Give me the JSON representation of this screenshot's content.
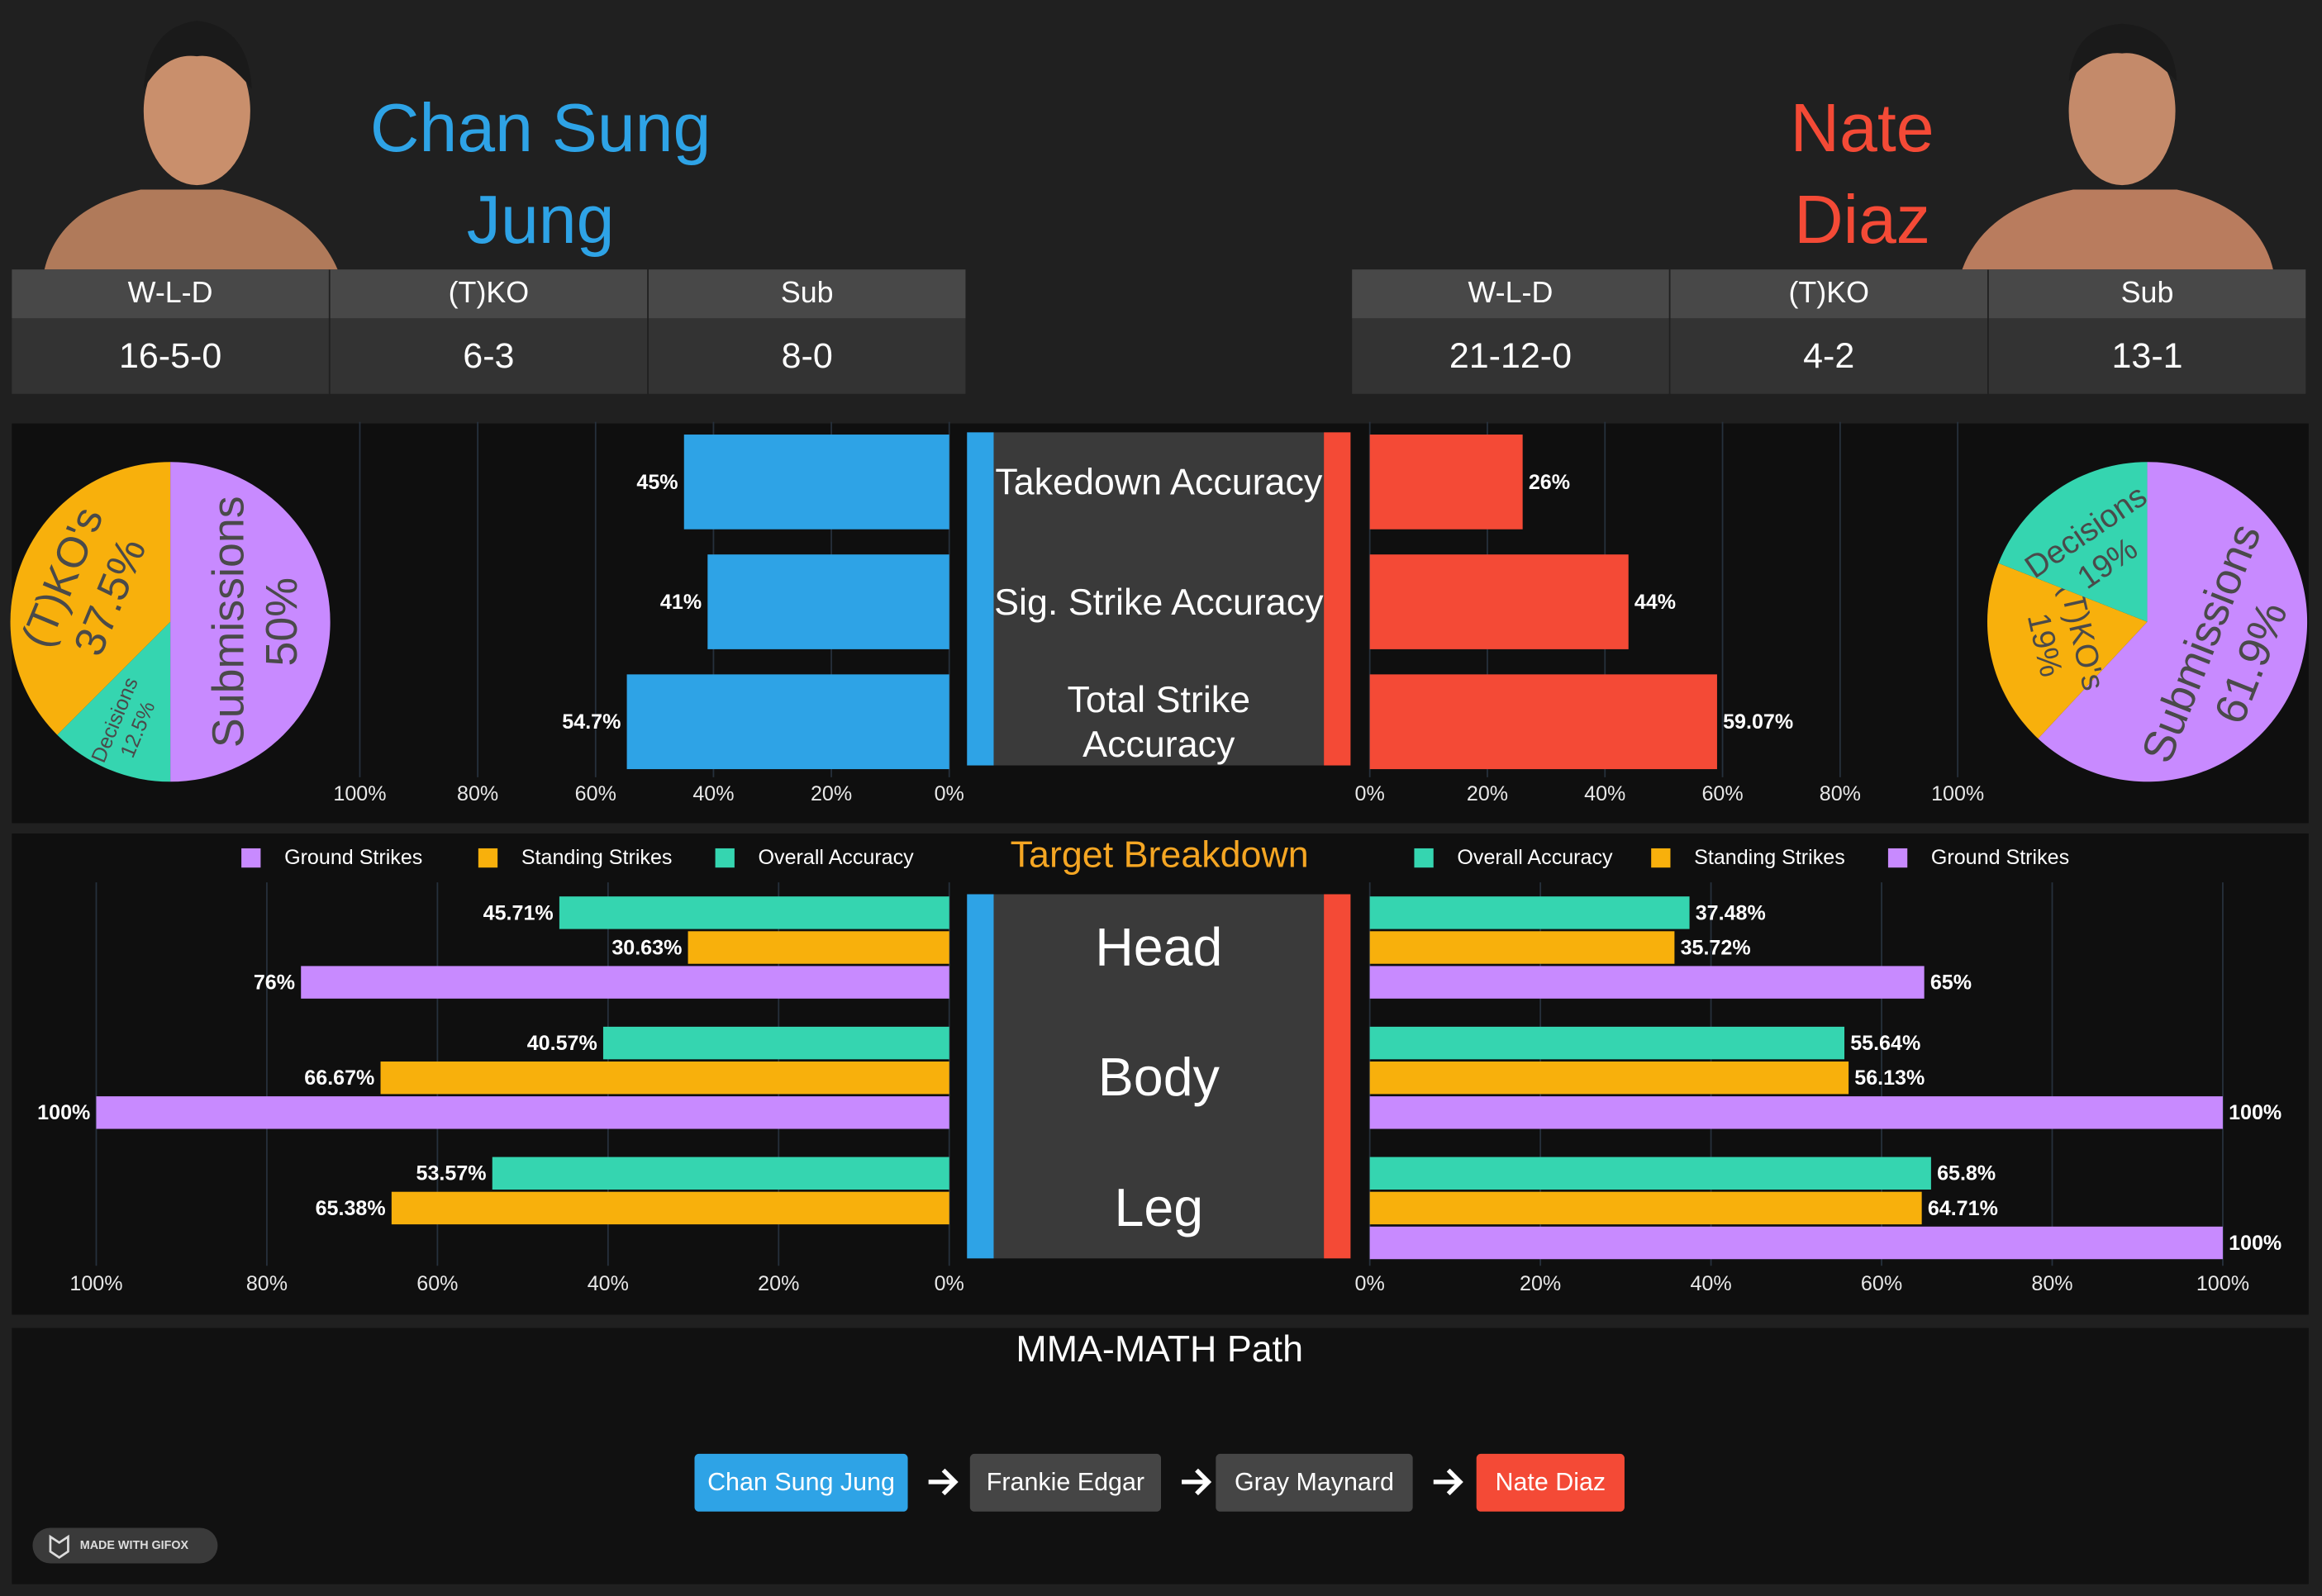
{
  "fighters": [
    {
      "name": "Chan Sung Jung",
      "color": "#2ea3e6",
      "stats": [
        {
          "label": "W-L-D",
          "value": "16-5-0"
        },
        {
          "label": "(T)KO",
          "value": "6-3"
        },
        {
          "label": "Sub",
          "value": "8-0"
        }
      ]
    },
    {
      "name": "Nate Diaz",
      "color": "#f44a36",
      "stats": [
        {
          "label": "W-L-D",
          "value": "21-12-0"
        },
        {
          "label": "(T)KO",
          "value": "4-2"
        },
        {
          "label": "Sub",
          "value": "13-1"
        }
      ]
    }
  ],
  "chart_data": [
    {
      "type": "pie",
      "labels": [
        "Submissions",
        "Decisions",
        "(T)KO's"
      ],
      "values": [
        50,
        12.5,
        37.5
      ],
      "value_labels": [
        "50%",
        "12.5%",
        "37.5%"
      ],
      "colors": [
        "#c88aff",
        "#35d5b0",
        "#f8b00c"
      ]
    },
    {
      "type": "pie",
      "labels": [
        "Submissions",
        "(T)KO's",
        "Decisions"
      ],
      "values": [
        61.9,
        19,
        19
      ],
      "value_labels": [
        "61.9%",
        "19%",
        "19%"
      ],
      "colors": [
        "#c88aff",
        "#f8b00c",
        "#35d5b0"
      ]
    },
    {
      "type": "butterfly",
      "categories": [
        "Takedown Accuracy",
        "Sig. Strike Accuracy",
        "Total Strike Accuracy"
      ],
      "xlim": [
        0,
        100
      ],
      "xticks": [
        {
          "value": 0,
          "label": "0%"
        },
        {
          "value": 20,
          "label": "20%"
        },
        {
          "value": 40,
          "label": "40%"
        },
        {
          "value": 60,
          "label": "60%"
        },
        {
          "value": 80,
          "label": "80%"
        },
        {
          "value": 100,
          "label": "100%"
        }
      ],
      "sides": [
        {
          "series": [
            {
              "color": "#2ea3e6",
              "values": [
                45,
                41,
                54.7
              ],
              "value_labels": [
                "45%",
                "41%",
                "54.7%"
              ]
            }
          ]
        },
        {
          "series": [
            {
              "color": "#f44a36",
              "values": [
                26,
                44,
                59.07
              ],
              "value_labels": [
                "26%",
                "44%",
                "59.07%"
              ]
            }
          ]
        }
      ]
    },
    {
      "type": "butterfly",
      "title": "Target Breakdown",
      "categories": [
        "Head",
        "Body",
        "Leg"
      ],
      "xlim": [
        0,
        100
      ],
      "xticks": [
        {
          "value": 0,
          "label": "0%"
        },
        {
          "value": 20,
          "label": "20%"
        },
        {
          "value": 40,
          "label": "40%"
        },
        {
          "value": 60,
          "label": "60%"
        },
        {
          "value": 80,
          "label": "80%"
        },
        {
          "value": 100,
          "label": "100%"
        }
      ],
      "sides": [
        {
          "series": [
            {
              "name": "Ground Strikes",
              "color": "#c88aff",
              "values": [
                76,
                100,
                null
              ],
              "value_labels": [
                "76%",
                "100%",
                null
              ]
            },
            {
              "name": "Standing Strikes",
              "color": "#f8b00c",
              "values": [
                30.63,
                66.67,
                65.38
              ],
              "value_labels": [
                "30.63%",
                "66.67%",
                "65.38%"
              ]
            },
            {
              "name": "Overall Accuracy",
              "color": "#35d5b0",
              "values": [
                45.71,
                40.57,
                53.57
              ],
              "value_labels": [
                "45.71%",
                "40.57%",
                "53.57%"
              ]
            }
          ]
        },
        {
          "series": [
            {
              "name": "Overall Accuracy",
              "color": "#35d5b0",
              "values": [
                37.48,
                55.64,
                65.8
              ],
              "value_labels": [
                "37.48%",
                "55.64%",
                "65.8%"
              ]
            },
            {
              "name": "Standing Strikes",
              "color": "#f8b00c",
              "values": [
                35.72,
                56.13,
                64.71
              ],
              "value_labels": [
                "35.72%",
                "56.13%",
                "64.71%"
              ]
            },
            {
              "name": "Ground Strikes",
              "color": "#c88aff",
              "values": [
                65,
                100,
                100
              ],
              "value_labels": [
                "65%",
                "100%",
                "100%"
              ]
            }
          ]
        }
      ]
    }
  ],
  "path": {
    "title": "MMA-MATH Path",
    "nodes": [
      "Chan Sung Jung",
      "Frankie Edgar",
      "Gray Maynard",
      "Nate Diaz"
    ]
  },
  "badge": "MADE WITH GIFOX"
}
